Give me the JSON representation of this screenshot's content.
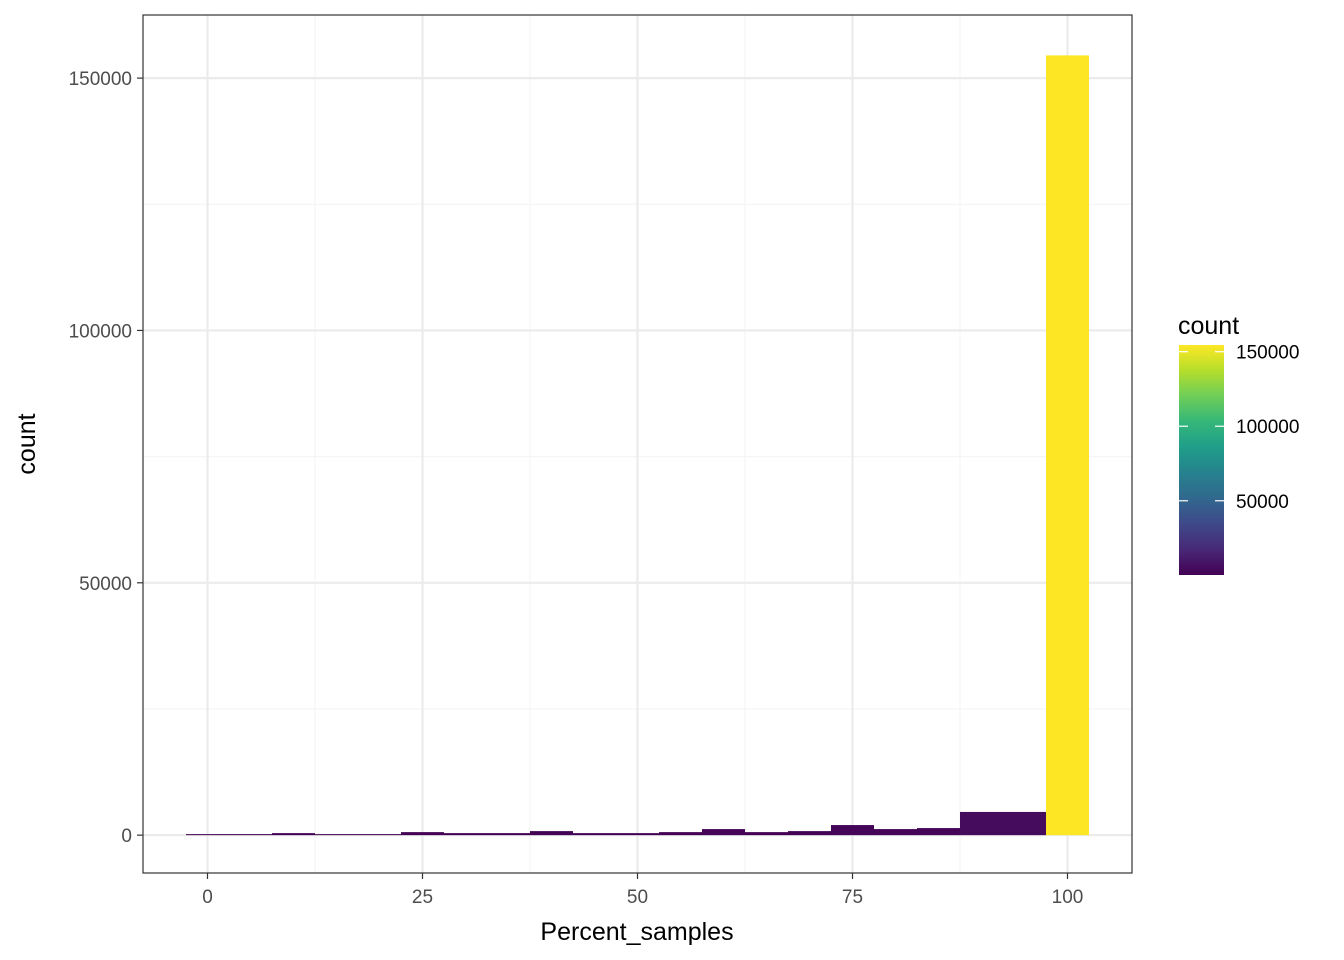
{
  "chart_data": {
    "type": "bar",
    "xlabel": "Percent_samples",
    "ylabel": "count",
    "xlim": [
      -7.5,
      107.5
    ],
    "ylim": [
      -7500,
      162500
    ],
    "x_ticks": [
      0,
      25,
      50,
      75,
      100
    ],
    "x_tick_labels": [
      "0",
      "25",
      "50",
      "75",
      "100"
    ],
    "y_ticks": [
      0,
      50000,
      100000,
      150000
    ],
    "y_tick_labels": [
      "0",
      "50000",
      "100000",
      "150000"
    ],
    "bin_width": 5,
    "bins": [
      {
        "x": 0,
        "count": 200
      },
      {
        "x": 5,
        "count": 200
      },
      {
        "x": 10,
        "count": 400
      },
      {
        "x": 15,
        "count": 200
      },
      {
        "x": 20,
        "count": 200
      },
      {
        "x": 25,
        "count": 600
      },
      {
        "x": 30,
        "count": 400
      },
      {
        "x": 35,
        "count": 400
      },
      {
        "x": 40,
        "count": 800
      },
      {
        "x": 45,
        "count": 400
      },
      {
        "x": 50,
        "count": 400
      },
      {
        "x": 55,
        "count": 600
      },
      {
        "x": 60,
        "count": 1200
      },
      {
        "x": 65,
        "count": 600
      },
      {
        "x": 70,
        "count": 800
      },
      {
        "x": 75,
        "count": 2000
      },
      {
        "x": 80,
        "count": 1200
      },
      {
        "x": 85,
        "count": 1400
      },
      {
        "x": 90,
        "count": 4600
      },
      {
        "x": 95,
        "count": 4600
      },
      {
        "x": 100,
        "count": 154500
      }
    ],
    "grid": true,
    "legend": {
      "title": "count",
      "placement": "right",
      "type": "colorbar",
      "palette": "viridis",
      "range": [
        200,
        154500
      ],
      "breaks": [
        50000,
        100000,
        150000
      ],
      "break_labels": [
        "50000",
        "100000",
        "150000"
      ]
    },
    "colors": {
      "panel_border": "#333333",
      "grid_major": "#ebebeb",
      "grid_minor": "#f5f5f5",
      "viridis": [
        "#440154",
        "#482878",
        "#3e4989",
        "#31688e",
        "#26828e",
        "#1f9e89",
        "#35b779",
        "#6ece58",
        "#b5de2b",
        "#fde725"
      ]
    }
  }
}
